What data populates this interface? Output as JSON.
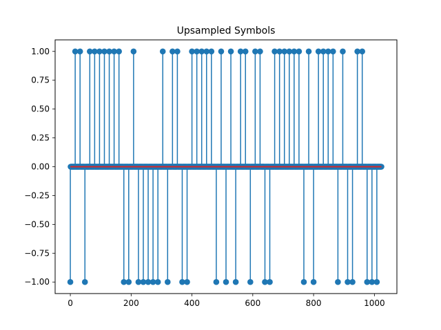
{
  "chart_data": {
    "type": "stem",
    "title": "Upsampled Symbols",
    "xlabel": "",
    "ylabel": "",
    "xlim": [
      -50,
      1074
    ],
    "ylim": [
      -1.1,
      1.1
    ],
    "xticks": [
      0,
      200,
      400,
      600,
      800,
      1000
    ],
    "yticks": [
      -1.0,
      -0.75,
      -0.5,
      -0.25,
      0.0,
      0.25,
      0.5,
      0.75,
      1.0
    ],
    "xtick_labels": [
      "0",
      "200",
      "400",
      "600",
      "800",
      "1000"
    ],
    "ytick_labels": [
      "−1.00",
      "−0.75",
      "−0.50",
      "−0.25",
      "0.00",
      "0.25",
      "0.50",
      "0.75",
      "1.00"
    ],
    "grid": false,
    "upsample_factor": 16,
    "num_samples": 1024,
    "symbols": [
      -1,
      1,
      1,
      -1,
      1,
      1,
      1,
      1,
      1,
      1,
      1,
      -1,
      -1,
      1,
      -1,
      -1,
      -1,
      -1,
      -1,
      1,
      -1,
      1,
      1,
      -1,
      -1,
      1,
      1,
      1,
      1,
      1,
      -1,
      1,
      -1,
      1,
      -1,
      1,
      1,
      -1,
      1,
      1,
      -1,
      -1,
      1,
      1,
      1,
      1,
      1,
      1,
      -1,
      1,
      -1,
      1,
      1,
      1,
      1,
      -1,
      1,
      -1,
      -1,
      1,
      1,
      -1,
      -1,
      -1
    ],
    "colors": {
      "stem": "#1f77b4",
      "baseline": "#d62728"
    }
  }
}
